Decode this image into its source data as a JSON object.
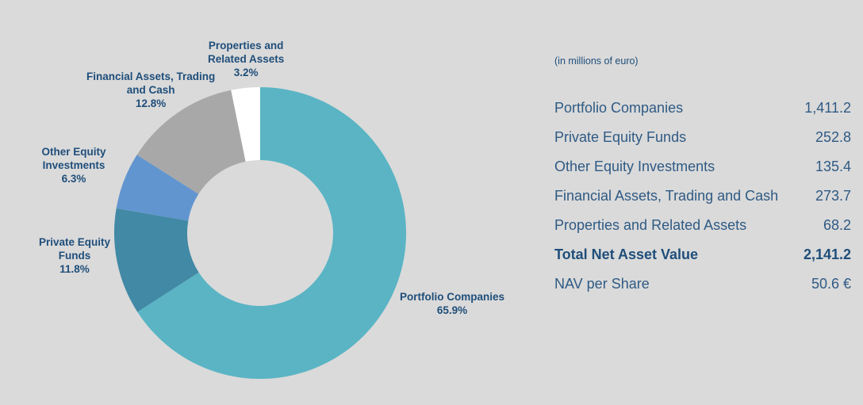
{
  "chart_data": {
    "type": "pie",
    "slices": [
      {
        "label_lines": [
          "Portfolio Companies"
        ],
        "percent_label": "65.9%",
        "value": 65.9,
        "color": "#5ab4c4"
      },
      {
        "label_lines": [
          "Private Equity",
          "Funds"
        ],
        "percent_label": "11.8%",
        "value": 11.8,
        "color": "#4189a5"
      },
      {
        "label_lines": [
          "Other Equity",
          "Investments"
        ],
        "percent_label": "6.3%",
        "value": 6.3,
        "color": "#6195cf"
      },
      {
        "label_lines": [
          "Financial Assets, Trading",
          "and Cash"
        ],
        "percent_label": "12.8%",
        "value": 12.8,
        "color": "#a8a8a8"
      },
      {
        "label_lines": [
          "Properties and",
          "Related Assets"
        ],
        "percent_label": "3.2%",
        "value": 3.2,
        "color": "#ffffff"
      }
    ]
  },
  "table": {
    "units_note": "(in millions of euro)",
    "rows": [
      {
        "label": "Portfolio Companies",
        "value": "1,411.2",
        "bold": false
      },
      {
        "label": "Private Equity Funds",
        "value": "252.8",
        "bold": false
      },
      {
        "label": "Other Equity Investments",
        "value": "135.4",
        "bold": false
      },
      {
        "label": "Financial Assets, Trading and Cash",
        "value": "273.7",
        "bold": false
      },
      {
        "label": "Properties and Related Assets",
        "value": "68.2",
        "bold": false
      },
      {
        "label": "Total Net Asset Value",
        "value": "2,141.2",
        "bold": true
      },
      {
        "label": "NAV per Share",
        "value": "50.6 €",
        "bold": false
      }
    ]
  }
}
